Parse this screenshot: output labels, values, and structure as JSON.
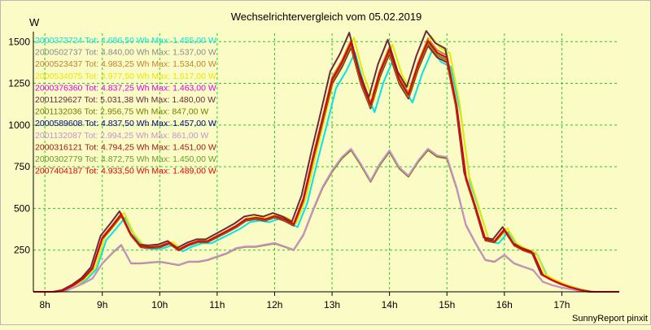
{
  "chart_data": {
    "type": "line",
    "title": "Wechselrichtervergleich vom 05.02.2019",
    "ylabel": "W",
    "footer": "SunnyReport pinxit",
    "ylim": [
      0,
      1550
    ],
    "xlim": [
      7.8,
      18.0
    ],
    "yticks": [
      250,
      500,
      750,
      1000,
      1250,
      1500
    ],
    "yticklabels": [
      "250",
      "500",
      "750",
      "1000",
      "1250",
      "1500"
    ],
    "xticks": [
      8,
      9,
      10,
      11,
      12,
      13,
      14,
      15,
      16,
      17
    ],
    "xticklabels": [
      "8h",
      "9h",
      "10h",
      "11h",
      "12h",
      "13h",
      "14h",
      "15h",
      "16h",
      "17h"
    ],
    "grid": true,
    "legend": "top-left",
    "series": [
      {
        "name": "2000373724 Tot: 4.686,50 Wh Max: 1.455,00 W",
        "color": "#00e5e5",
        "profile": "a",
        "ymod": 0.97,
        "xshift": 0.07
      },
      {
        "name": "2000502737 Tot: 4.840,00 Wh Max: 1.537,00 W",
        "color": "#8a8a8a",
        "profile": "a",
        "ymod": 1.0,
        "xshift": 0.0
      },
      {
        "name": "2000523437 Tot: 4.983,25 Wh Max: 1.534,00 W",
        "color": "#c87f2e",
        "profile": "a",
        "ymod": 1.02,
        "xshift": 0.0
      },
      {
        "name": "2000534075 Tot: 4.977,50 Wh Max: 1.517,00 W",
        "color": "#e8e800",
        "profile": "a",
        "ymod": 1.03,
        "xshift": 0.05
      },
      {
        "name": "2000376360 Tot: 4.837,25 Wh Max: 1.463,00 W",
        "color": "#e000e0",
        "profile": "a",
        "ymod": 1.0,
        "xshift": 0.0
      },
      {
        "name": "2001129627 Tot: 5.031,38 Wh Max: 1.480,00 W",
        "color": "#6a2a3a",
        "profile": "a",
        "ymod": 1.05,
        "xshift": -0.03
      },
      {
        "name": "2001132036 Tot: 2.956,75 Wh Max: 847,00 W",
        "color": "#7a7a00",
        "profile": "b",
        "ymod": 1.0,
        "xshift": 0.0
      },
      {
        "name": "2000589608 Tot: 4.837,50 Wh Max: 1.457,00 W",
        "color": "#000080",
        "profile": "a",
        "ymod": 1.0,
        "xshift": 0.0
      },
      {
        "name": "2001132087 Tot: 2.994,25 Wh Max: 861,00 W",
        "color": "#c890d0",
        "profile": "b",
        "ymod": 1.01,
        "xshift": 0.0
      },
      {
        "name": "2000316121 Tot: 4.794,25 Wh Max: 1.451,00 W",
        "color": "#a01818",
        "profile": "a",
        "ymod": 0.99,
        "xshift": 0.0
      },
      {
        "name": "2000302779 Tot: 4.872,75 Wh Max: 1.450,00 W",
        "color": "#6a9a2a",
        "profile": "a",
        "ymod": 1.0,
        "xshift": 0.0
      },
      {
        "name": "2007404187 Tot: 4.933,50 Wh Max: 1.489,00 W",
        "color": "#e00000",
        "profile": "a",
        "ymod": 1.01,
        "xshift": 0.0
      }
    ],
    "profiles": {
      "a": [
        [
          7.8,
          0
        ],
        [
          8.17,
          0
        ],
        [
          8.33,
          10
        ],
        [
          8.5,
          40
        ],
        [
          8.67,
          80
        ],
        [
          8.83,
          140
        ],
        [
          9.0,
          320
        ],
        [
          9.17,
          390
        ],
        [
          9.33,
          460
        ],
        [
          9.5,
          340
        ],
        [
          9.67,
          270
        ],
        [
          9.83,
          265
        ],
        [
          10.0,
          270
        ],
        [
          10.17,
          290
        ],
        [
          10.33,
          250
        ],
        [
          10.5,
          280
        ],
        [
          10.67,
          300
        ],
        [
          10.83,
          300
        ],
        [
          11.0,
          330
        ],
        [
          11.17,
          360
        ],
        [
          11.33,
          390
        ],
        [
          11.5,
          430
        ],
        [
          11.67,
          440
        ],
        [
          11.83,
          430
        ],
        [
          12.0,
          450
        ],
        [
          12.17,
          430
        ],
        [
          12.33,
          400
        ],
        [
          12.5,
          550
        ],
        [
          12.67,
          800
        ],
        [
          12.83,
          1020
        ],
        [
          13.0,
          1260
        ],
        [
          13.17,
          1360
        ],
        [
          13.33,
          1480
        ],
        [
          13.5,
          1260
        ],
        [
          13.67,
          1110
        ],
        [
          13.83,
          1300
        ],
        [
          14.0,
          1440
        ],
        [
          14.17,
          1260
        ],
        [
          14.33,
          1170
        ],
        [
          14.5,
          1350
        ],
        [
          14.67,
          1490
        ],
        [
          14.83,
          1420
        ],
        [
          15.0,
          1390
        ],
        [
          15.17,
          1100
        ],
        [
          15.33,
          680
        ],
        [
          15.5,
          500
        ],
        [
          15.67,
          310
        ],
        [
          15.83,
          300
        ],
        [
          16.0,
          370
        ],
        [
          16.17,
          280
        ],
        [
          16.33,
          250
        ],
        [
          16.5,
          230
        ],
        [
          16.67,
          100
        ],
        [
          16.83,
          70
        ],
        [
          17.0,
          45
        ],
        [
          17.17,
          25
        ],
        [
          17.33,
          10
        ],
        [
          17.5,
          0
        ],
        [
          18.0,
          0
        ]
      ],
      "b": [
        [
          7.8,
          0
        ],
        [
          8.17,
          0
        ],
        [
          8.33,
          5
        ],
        [
          8.5,
          25
        ],
        [
          8.67,
          50
        ],
        [
          8.83,
          80
        ],
        [
          9.0,
          170
        ],
        [
          9.17,
          230
        ],
        [
          9.33,
          280
        ],
        [
          9.5,
          170
        ],
        [
          9.67,
          170
        ],
        [
          9.83,
          175
        ],
        [
          10.0,
          180
        ],
        [
          10.17,
          170
        ],
        [
          10.33,
          160
        ],
        [
          10.5,
          180
        ],
        [
          10.67,
          180
        ],
        [
          10.83,
          190
        ],
        [
          11.0,
          210
        ],
        [
          11.17,
          230
        ],
        [
          11.33,
          260
        ],
        [
          11.5,
          270
        ],
        [
          11.67,
          270
        ],
        [
          11.83,
          280
        ],
        [
          12.0,
          290
        ],
        [
          12.17,
          270
        ],
        [
          12.33,
          250
        ],
        [
          12.5,
          340
        ],
        [
          12.67,
          490
        ],
        [
          12.83,
          620
        ],
        [
          13.0,
          720
        ],
        [
          13.17,
          800
        ],
        [
          13.33,
          850
        ],
        [
          13.5,
          760
        ],
        [
          13.67,
          660
        ],
        [
          13.83,
          760
        ],
        [
          14.0,
          840
        ],
        [
          14.17,
          740
        ],
        [
          14.33,
          690
        ],
        [
          14.5,
          780
        ],
        [
          14.67,
          850
        ],
        [
          14.83,
          810
        ],
        [
          15.0,
          800
        ],
        [
          15.17,
          620
        ],
        [
          15.33,
          400
        ],
        [
          15.5,
          290
        ],
        [
          15.67,
          190
        ],
        [
          15.83,
          180
        ],
        [
          16.0,
          220
        ],
        [
          16.17,
          170
        ],
        [
          16.33,
          150
        ],
        [
          16.5,
          130
        ],
        [
          16.67,
          60
        ],
        [
          16.83,
          40
        ],
        [
          17.0,
          25
        ],
        [
          17.17,
          15
        ],
        [
          17.33,
          5
        ],
        [
          17.5,
          0
        ],
        [
          18.0,
          0
        ]
      ]
    }
  }
}
